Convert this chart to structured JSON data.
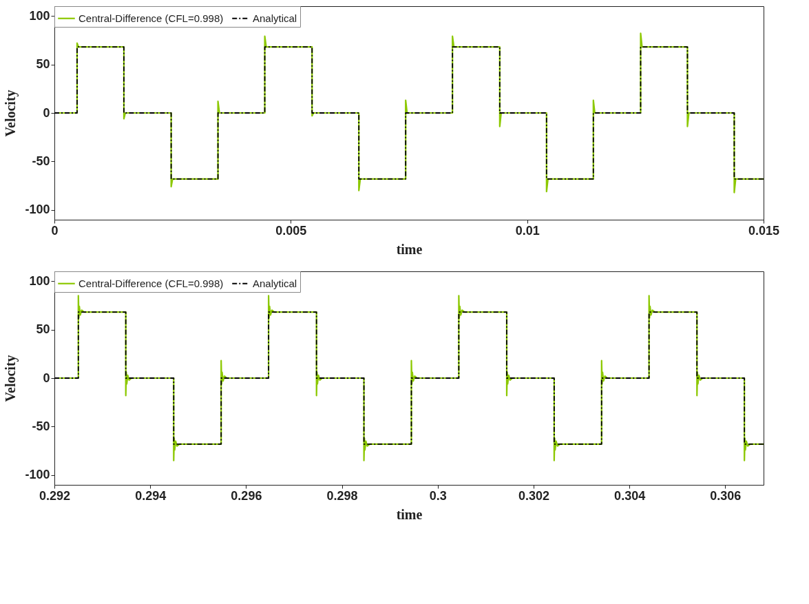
{
  "chart_data": [
    {
      "type": "line",
      "xlabel": "time",
      "ylabel": "Velocity",
      "xlim": [
        0,
        0.015
      ],
      "xticks": [
        0,
        0.005,
        0.01,
        0.015
      ],
      "ylim": [
        -110,
        110
      ],
      "yticks": [
        -100,
        -50,
        0,
        50,
        100
      ],
      "grid": false,
      "legend": "top left",
      "marker": "none",
      "series": [
        {
          "name": "Central-Difference (CFL=0.998)",
          "color": "#8cc800",
          "line_style": "solid",
          "x": [
            0,
            0.00048,
            0.00048,
            0.00051,
            0.00147,
            0.00147,
            0.0015,
            0.00247,
            0.00247,
            0.0025,
            0.00346,
            0.00346,
            0.00349,
            0.00445,
            0.00445,
            0.00448,
            0.00545,
            0.00545,
            0.00548,
            0.00644,
            0.00644,
            0.00647,
            0.00743,
            0.00743,
            0.00746,
            0.00842,
            0.00842,
            0.00845,
            0.00942,
            0.00942,
            0.00945,
            0.01041,
            0.01041,
            0.01044,
            0.0114,
            0.0114,
            0.01143,
            0.0124,
            0.0124,
            0.01243,
            0.01339,
            0.01339,
            0.01342,
            0.01438,
            0.01438,
            0.01441,
            0.015
          ],
          "values": [
            0,
            0,
            72,
            68,
            68,
            -6,
            0,
            0,
            -76,
            -68,
            -68,
            12,
            0,
            0,
            79,
            68,
            68,
            -3,
            0,
            0,
            -80,
            -68,
            -68,
            13,
            0,
            0,
            79,
            68,
            68,
            -14,
            0,
            0,
            -81,
            -68,
            -68,
            13,
            0,
            0,
            82,
            68,
            68,
            -14,
            0,
            0,
            -82,
            -68,
            -68
          ]
        },
        {
          "name": "Analytical",
          "color": "#000000",
          "line_style": "dashdot",
          "x": [
            0,
            0.00048,
            0.00048,
            0.00147,
            0.00147,
            0.00247,
            0.00247,
            0.00346,
            0.00346,
            0.00445,
            0.00445,
            0.00545,
            0.00545,
            0.00644,
            0.00644,
            0.00743,
            0.00743,
            0.00842,
            0.00842,
            0.00942,
            0.00942,
            0.01041,
            0.01041,
            0.0114,
            0.0114,
            0.0124,
            0.0124,
            0.01339,
            0.01339,
            0.01438,
            0.01438,
            0.015
          ],
          "values": [
            0,
            0,
            68,
            68,
            0,
            0,
            -68,
            -68,
            0,
            0,
            68,
            68,
            0,
            0,
            -68,
            -68,
            0,
            0,
            68,
            68,
            0,
            0,
            -68,
            -68,
            0,
            0,
            68,
            68,
            0,
            0,
            -68,
            -68
          ]
        }
      ]
    },
    {
      "type": "line",
      "xlabel": "time",
      "ylabel": "Velocity",
      "xlim": [
        0.292,
        0.3068
      ],
      "xticks": [
        0.292,
        0.294,
        0.296,
        0.298,
        0.3,
        0.302,
        0.304,
        0.306
      ],
      "ylim": [
        -110,
        110
      ],
      "yticks": [
        -100,
        -50,
        0,
        50,
        100
      ],
      "grid": false,
      "legend": "top left",
      "marker": "none",
      "series": [
        {
          "name": "Central-Difference (CFL=0.998)",
          "color": "#8cc800",
          "line_style": "solid",
          "x": [
            0.292,
            0.2925,
            0.2925,
            0.29251,
            0.29252,
            0.29254,
            0.29257,
            0.29262,
            0.29349,
            0.29349,
            0.2935,
            0.29351,
            0.29353,
            0.29356,
            0.29361,
            0.29449,
            0.29449,
            0.2945,
            0.29451,
            0.29453,
            0.29456,
            0.29461,
            0.29548,
            0.29548,
            0.29549,
            0.2955,
            0.29552,
            0.29555,
            0.2956,
            0.29647,
            0.29647,
            0.29648,
            0.29649,
            0.29651,
            0.29654,
            0.29659,
            0.29747,
            0.29747,
            0.29748,
            0.29749,
            0.29751,
            0.29754,
            0.29759,
            0.29846,
            0.29846,
            0.29847,
            0.29848,
            0.2985,
            0.29853,
            0.29858,
            0.29945,
            0.29945,
            0.29946,
            0.29947,
            0.29949,
            0.29952,
            0.29957,
            0.30044,
            0.30044,
            0.30045,
            0.30046,
            0.30048,
            0.30051,
            0.30056,
            0.30144,
            0.30144,
            0.30145,
            0.30146,
            0.30148,
            0.30151,
            0.30156,
            0.30243,
            0.30243,
            0.30244,
            0.30245,
            0.30247,
            0.3025,
            0.30255,
            0.30342,
            0.30342,
            0.30343,
            0.30344,
            0.30346,
            0.30349,
            0.30354,
            0.30441,
            0.30441,
            0.30442,
            0.30443,
            0.30445,
            0.30448,
            0.30453,
            0.30541,
            0.30541,
            0.30542,
            0.30543,
            0.30545,
            0.30548,
            0.30553,
            0.3064,
            0.3064,
            0.30641,
            0.30642,
            0.30644,
            0.30647,
            0.30652,
            0.3068
          ],
          "values": [
            0,
            0,
            85,
            62,
            74,
            65,
            70,
            68,
            68,
            -18,
            6,
            -6,
            3,
            -2,
            0,
            0,
            -85,
            -62,
            -74,
            -65,
            -70,
            -68,
            -68,
            18,
            -6,
            6,
            -3,
            2,
            0,
            0,
            85,
            62,
            74,
            65,
            70,
            68,
            68,
            -18,
            6,
            -6,
            3,
            -2,
            0,
            0,
            -85,
            -62,
            -74,
            -65,
            -70,
            -68,
            -68,
            18,
            -6,
            6,
            -3,
            2,
            0,
            0,
            85,
            62,
            74,
            65,
            70,
            68,
            68,
            -18,
            6,
            -6,
            3,
            -2,
            0,
            0,
            -85,
            -62,
            -74,
            -65,
            -70,
            -68,
            -68,
            18,
            -6,
            6,
            -3,
            2,
            0,
            0,
            85,
            62,
            74,
            65,
            70,
            68,
            68,
            -18,
            6,
            -6,
            3,
            -2,
            0,
            0,
            -85,
            -62,
            -74,
            -65,
            -70,
            -68,
            -68
          ]
        },
        {
          "name": "Analytical",
          "color": "#000000",
          "line_style": "dashdot",
          "x": [
            0.292,
            0.2925,
            0.2925,
            0.29349,
            0.29349,
            0.29449,
            0.29449,
            0.29548,
            0.29548,
            0.29647,
            0.29647,
            0.29747,
            0.29747,
            0.29846,
            0.29846,
            0.29945,
            0.29945,
            0.30044,
            0.30044,
            0.30144,
            0.30144,
            0.30243,
            0.30243,
            0.30342,
            0.30342,
            0.30441,
            0.30441,
            0.30541,
            0.30541,
            0.3064,
            0.3064,
            0.3068
          ],
          "values": [
            0,
            0,
            68,
            68,
            0,
            0,
            -68,
            -68,
            0,
            0,
            68,
            68,
            0,
            0,
            -68,
            -68,
            0,
            0,
            68,
            68,
            0,
            0,
            -68,
            -68,
            0,
            0,
            68,
            68,
            0,
            0,
            -68,
            -68
          ]
        }
      ]
    }
  ]
}
